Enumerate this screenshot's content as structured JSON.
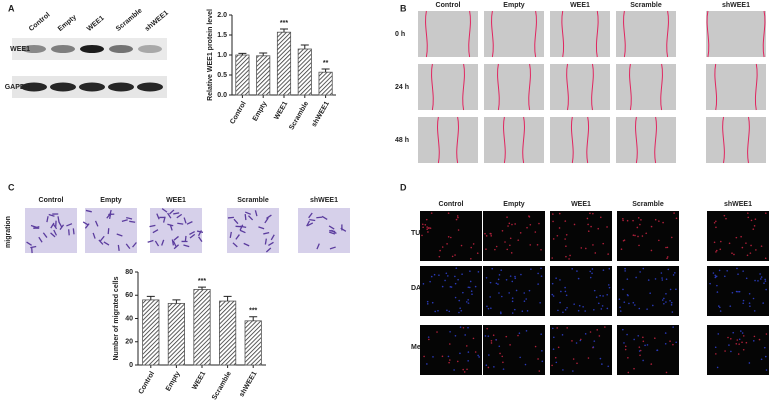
{
  "panel_labels": [
    "A",
    "B",
    "C",
    "D"
  ],
  "blot": {
    "lanes": [
      "Control",
      "Empty",
      "WEE1",
      "Scramble",
      "shWEE1"
    ],
    "rows": [
      "WEE1",
      "GAPDH"
    ]
  },
  "chart_data": [
    {
      "type": "bar",
      "y_label": "Relative WEE1 protein level",
      "categories": [
        "Control",
        "Empty",
        "WEE1",
        "Scramble",
        "shWEE1"
      ],
      "values": [
        1.0,
        0.98,
        1.57,
        1.15,
        0.57
      ],
      "errors": [
        0.04,
        0.07,
        0.08,
        0.1,
        0.08
      ],
      "color": "#555555",
      "ylim": [
        0,
        2.0
      ],
      "yticks": [
        {
          "value": 0,
          "label": "0.0"
        },
        0.5,
        {
          "value": 1,
          "label": "1.0"
        },
        1.5,
        {
          "value": 2,
          "label": "2.0"
        }
      ],
      "annotations": [
        {
          "category": "WEE1",
          "text": "***"
        },
        {
          "category": "shWEE1",
          "text": "**"
        }
      ]
    },
    {
      "type": "bar",
      "y_label": "Number of migrated cells",
      "categories": [
        "Control",
        "Empty",
        "WEE1",
        "Scramble",
        "shWEE1"
      ],
      "values": [
        56,
        53,
        65,
        55,
        38
      ],
      "errors": [
        3,
        3,
        2,
        4,
        3.5
      ],
      "color": "#555555",
      "ylim": [
        0,
        80
      ],
      "yticks": [
        0,
        20,
        40,
        60,
        80
      ],
      "annotations": [
        {
          "category": "WEE1",
          "text": "***"
        },
        {
          "category": "shWEE1",
          "text": "***"
        }
      ]
    }
  ],
  "wound": {
    "columns": [
      "Control",
      "Empty",
      "WEE1",
      "Scramble",
      "shWEE1"
    ],
    "rows": [
      "0 h",
      "24 h",
      "48 h"
    ]
  },
  "migration": {
    "columns": [
      "Control",
      "Empty",
      "WEE1",
      "Scramble",
      "shWEE1"
    ],
    "row_label": "migration"
  },
  "tunel": {
    "columns": [
      "Control",
      "Empty",
      "WEE1",
      "Scramble",
      "shWEE1"
    ],
    "rows": [
      "TUNEL",
      "DAPI",
      "Merge"
    ]
  }
}
